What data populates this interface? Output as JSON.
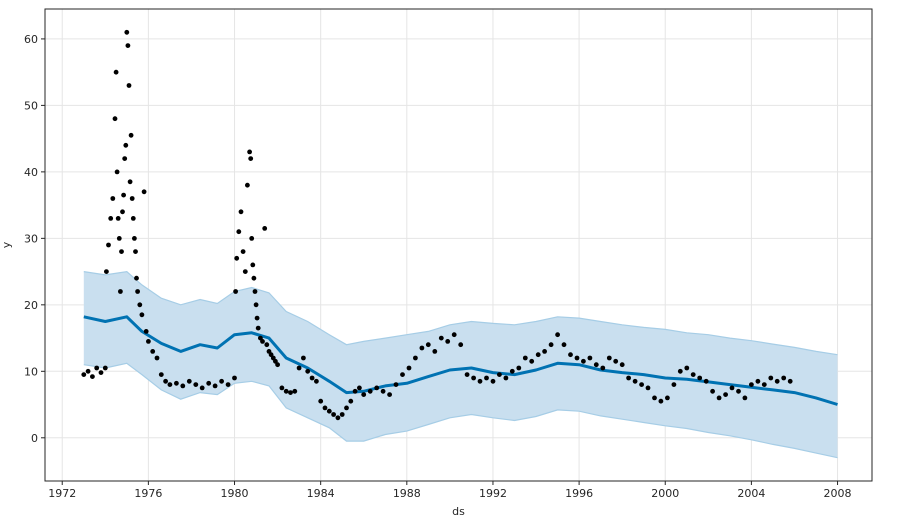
{
  "chart_data": {
    "type": "scatter",
    "title": "",
    "xlabel": "ds",
    "ylabel": "y",
    "xlim": [
      1971.2,
      2009.6
    ],
    "ylim": [
      -6.5,
      64.5
    ],
    "grid": true,
    "x_tick_labels": [
      "1972",
      "1976",
      "1980",
      "1984",
      "1988",
      "1992",
      "1996",
      "2000",
      "2004",
      "2008"
    ],
    "y_tick_labels": [
      "0",
      "10",
      "20",
      "30",
      "40",
      "50",
      "60"
    ],
    "colors": {
      "observed": "#000000",
      "forecast": "#0072B2",
      "interval": "#A6CDE6",
      "interval_fill": "#C9DFEF",
      "grid": "#E5E5E5",
      "axes": "#262626"
    },
    "series": [
      {
        "kind": "forecast_line",
        "x": [
          1973.0,
          1974.0,
          1975.0,
          1975.7,
          1976.6,
          1977.5,
          1978.4,
          1979.2,
          1980.0,
          1980.8,
          1981.6,
          1982.4,
          1983.4,
          1984.4,
          1985.2,
          1986.0,
          1987.0,
          1988.0,
          1989.0,
          1990.0,
          1991.0,
          1992.0,
          1993.0,
          1994.0,
          1995.0,
          1996.0,
          1997.0,
          1998.0,
          1999.0,
          2000.0,
          2001.0,
          2002.0,
          2003.0,
          2004.0,
          2005.0,
          2006.0,
          2007.0,
          2008.0
        ],
        "y": [
          18.2,
          17.5,
          18.2,
          16.0,
          14.2,
          13.0,
          14.0,
          13.5,
          15.5,
          15.8,
          15.0,
          12.0,
          10.5,
          8.5,
          6.8,
          7.0,
          7.8,
          8.2,
          9.2,
          10.2,
          10.5,
          9.8,
          9.5,
          10.2,
          11.2,
          11.0,
          10.2,
          9.8,
          9.5,
          9.0,
          8.8,
          8.4,
          8.0,
          7.6,
          7.2,
          6.8,
          6.0,
          5.0
        ]
      },
      {
        "kind": "upper_bound",
        "x": [
          1973.0,
          1974.0,
          1975.0,
          1975.7,
          1976.6,
          1977.5,
          1978.4,
          1979.2,
          1980.0,
          1980.8,
          1981.6,
          1982.4,
          1983.4,
          1984.4,
          1985.2,
          1986.0,
          1987.0,
          1988.0,
          1989.0,
          1990.0,
          1991.0,
          1992.0,
          1993.0,
          1994.0,
          1995.0,
          1996.0,
          1997.0,
          1998.0,
          1999.0,
          2000.0,
          2001.0,
          2002.0,
          2003.0,
          2004.0,
          2005.0,
          2006.0,
          2007.0,
          2008.0
        ],
        "y": [
          25.0,
          24.5,
          25.0,
          23.0,
          21.0,
          20.0,
          20.8,
          20.2,
          22.0,
          22.6,
          21.8,
          19.0,
          17.5,
          15.5,
          14.0,
          14.5,
          15.0,
          15.5,
          16.0,
          17.0,
          17.5,
          17.2,
          17.0,
          17.5,
          18.2,
          18.0,
          17.5,
          17.0,
          16.6,
          16.3,
          15.8,
          15.5,
          15.0,
          14.6,
          14.1,
          13.6,
          13.0,
          12.5
        ]
      },
      {
        "kind": "lower_bound",
        "x": [
          1973.0,
          1974.0,
          1975.0,
          1975.7,
          1976.6,
          1977.5,
          1978.4,
          1979.2,
          1980.0,
          1980.8,
          1981.6,
          1982.4,
          1983.4,
          1984.4,
          1985.2,
          1986.0,
          1987.0,
          1988.0,
          1989.0,
          1990.0,
          1991.0,
          1992.0,
          1993.0,
          1994.0,
          1995.0,
          1996.0,
          1997.0,
          1998.0,
          1999.0,
          2000.0,
          2001.0,
          2002.0,
          2003.0,
          2004.0,
          2005.0,
          2006.0,
          2007.0,
          2008.0
        ],
        "y": [
          11.0,
          10.5,
          11.2,
          9.5,
          7.2,
          5.8,
          6.8,
          6.5,
          8.2,
          8.5,
          7.8,
          4.5,
          3.0,
          1.5,
          -0.5,
          -0.5,
          0.5,
          1.0,
          2.0,
          3.0,
          3.5,
          3.0,
          2.6,
          3.2,
          4.2,
          4.0,
          3.3,
          2.8,
          2.3,
          1.8,
          1.4,
          0.8,
          0.3,
          -0.3,
          -1.0,
          -1.6,
          -2.3,
          -3.0
        ]
      },
      {
        "kind": "observed",
        "x": [
          1973.0,
          1973.2,
          1973.4,
          1973.6,
          1973.8,
          1974.0,
          1974.05,
          1974.15,
          1974.25,
          1974.35,
          1974.45,
          1974.5,
          1974.55,
          1974.6,
          1974.65,
          1974.7,
          1974.75,
          1974.8,
          1974.85,
          1974.9,
          1974.95,
          1975.0,
          1975.05,
          1975.1,
          1975.15,
          1975.2,
          1975.25,
          1975.3,
          1975.35,
          1975.4,
          1975.45,
          1975.5,
          1975.6,
          1975.7,
          1975.8,
          1975.9,
          1976.0,
          1976.2,
          1976.4,
          1976.6,
          1976.8,
          1977.0,
          1977.3,
          1977.6,
          1977.9,
          1978.2,
          1978.5,
          1978.8,
          1979.1,
          1979.4,
          1979.7,
          1980.0,
          1980.05,
          1980.1,
          1980.2,
          1980.3,
          1980.4,
          1980.5,
          1980.6,
          1980.7,
          1980.75,
          1980.8,
          1980.85,
          1980.9,
          1980.95,
          1981.0,
          1981.05,
          1981.1,
          1981.2,
          1981.3,
          1981.4,
          1981.5,
          1981.6,
          1981.7,
          1981.8,
          1981.9,
          1982.0,
          1982.2,
          1982.4,
          1982.6,
          1982.8,
          1983.0,
          1983.2,
          1983.4,
          1983.6,
          1983.8,
          1984.0,
          1984.2,
          1984.4,
          1984.6,
          1984.8,
          1985.0,
          1985.2,
          1985.4,
          1985.6,
          1985.8,
          1986.0,
          1986.3,
          1986.6,
          1986.9,
          1987.2,
          1987.5,
          1987.8,
          1988.1,
          1988.4,
          1988.7,
          1989.0,
          1989.3,
          1989.6,
          1989.9,
          1990.2,
          1990.5,
          1990.8,
          1991.1,
          1991.4,
          1991.7,
          1992.0,
          1992.3,
          1992.6,
          1992.9,
          1993.2,
          1993.5,
          1993.8,
          1994.1,
          1994.4,
          1994.7,
          1995.0,
          1995.3,
          1995.6,
          1995.9,
          1996.2,
          1996.5,
          1996.8,
          1997.1,
          1997.4,
          1997.7,
          1998.0,
          1998.3,
          1998.6,
          1998.9,
          1999.2,
          1999.5,
          1999.8,
          2000.1,
          2000.4,
          2000.7,
          2001.0,
          2001.3,
          2001.6,
          2001.9,
          2002.2,
          2002.5,
          2002.8,
          2003.1,
          2003.4,
          2003.7,
          2004.0,
          2004.3,
          2004.6,
          2004.9,
          2005.2,
          2005.5,
          2005.8
        ],
        "y": [
          9.5,
          10.0,
          9.2,
          10.5,
          9.8,
          10.5,
          25.0,
          29.0,
          33.0,
          36.0,
          48.0,
          55.0,
          40.0,
          33.0,
          30.0,
          22.0,
          28.0,
          34.0,
          36.5,
          42.0,
          44.0,
          61.0,
          59.0,
          53.0,
          38.5,
          45.5,
          36.0,
          33.0,
          30.0,
          28.0,
          24.0,
          22.0,
          20.0,
          18.5,
          37.0,
          16.0,
          14.5,
          13.0,
          12.0,
          9.5,
          8.5,
          8.0,
          8.2,
          7.8,
          8.5,
          8.0,
          7.5,
          8.2,
          7.8,
          8.5,
          8.0,
          9.0,
          22.0,
          27.0,
          31.0,
          34.0,
          28.0,
          25.0,
          38.0,
          43.0,
          42.0,
          30.0,
          26.0,
          24.0,
          22.0,
          20.0,
          18.0,
          16.5,
          15.0,
          14.5,
          31.5,
          14.0,
          13.0,
          12.5,
          12.0,
          11.5,
          11.0,
          7.5,
          7.0,
          6.8,
          7.0,
          10.5,
          12.0,
          10.0,
          9.0,
          8.5,
          5.5,
          4.5,
          4.0,
          3.5,
          3.0,
          3.5,
          4.5,
          5.5,
          7.0,
          7.5,
          6.5,
          7.0,
          7.5,
          7.0,
          6.5,
          8.0,
          9.5,
          10.5,
          12.0,
          13.5,
          14.0,
          13.0,
          15.0,
          14.5,
          15.5,
          14.0,
          9.5,
          9.0,
          8.5,
          9.0,
          8.5,
          9.5,
          9.0,
          10.0,
          10.5,
          12.0,
          11.5,
          12.5,
          13.0,
          14.0,
          15.5,
          14.0,
          12.5,
          12.0,
          11.5,
          12.0,
          11.0,
          10.5,
          12.0,
          11.5,
          11.0,
          9.0,
          8.5,
          8.0,
          7.5,
          6.0,
          5.5,
          6.0,
          8.0,
          10.0,
          10.5,
          9.5,
          9.0,
          8.5,
          7.0,
          6.0,
          6.5,
          7.5,
          7.0,
          6.0,
          8.0,
          8.5,
          8.0,
          9.0,
          8.5,
          9.0,
          8.5
        ]
      }
    ]
  }
}
